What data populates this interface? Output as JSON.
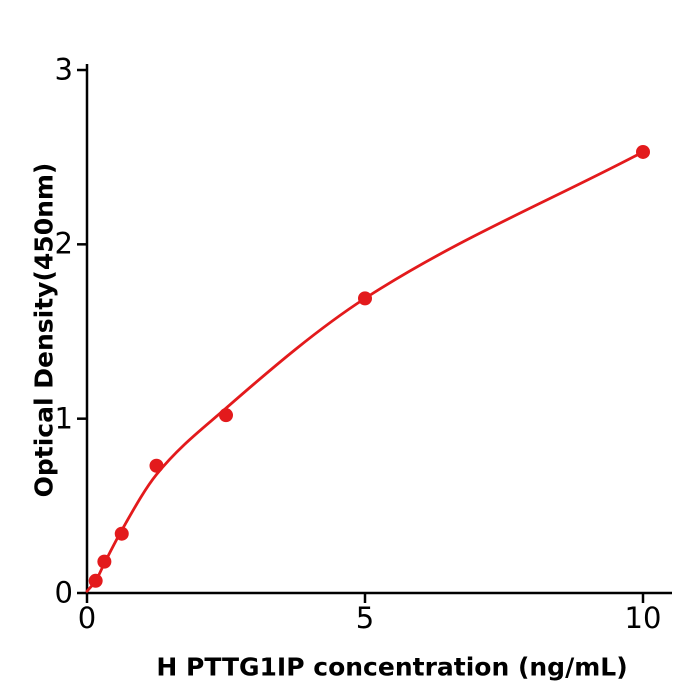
{
  "figure": {
    "background": "#ffffff",
    "axis_color": "#000000",
    "text_color": "#000000"
  },
  "chart_data": {
    "type": "scatter",
    "title": "",
    "xlabel": "H  PTTG1IP concentration (ng/mL)",
    "ylabel": "Optical Density(450nm)",
    "x_ticks": [
      0,
      5,
      10
    ],
    "y_ticks": [
      0,
      1,
      2,
      3
    ],
    "xlim": [
      0,
      10.5
    ],
    "ylim": [
      0,
      3.03
    ],
    "grid": false,
    "legend": null,
    "point_color": "#e31a1c",
    "curve_color": "#e31a1c",
    "points": [
      {
        "x": 0.156,
        "y": 0.07
      },
      {
        "x": 0.3125,
        "y": 0.18
      },
      {
        "x": 0.625,
        "y": 0.34
      },
      {
        "x": 1.25,
        "y": 0.73
      },
      {
        "x": 2.5,
        "y": 1.02
      },
      {
        "x": 5,
        "y": 1.69
      },
      {
        "x": 10,
        "y": 2.53
      }
    ],
    "curve_anchors": [
      {
        "x": 0,
        "y": 0.01
      },
      {
        "x": 0.156,
        "y": 0.07
      },
      {
        "x": 0.3125,
        "y": 0.17
      },
      {
        "x": 0.625,
        "y": 0.36
      },
      {
        "x": 1.25,
        "y": 0.68
      },
      {
        "x": 2.5,
        "y": 1.06
      },
      {
        "x": 5,
        "y": 1.69
      },
      {
        "x": 10,
        "y": 2.53
      }
    ]
  }
}
